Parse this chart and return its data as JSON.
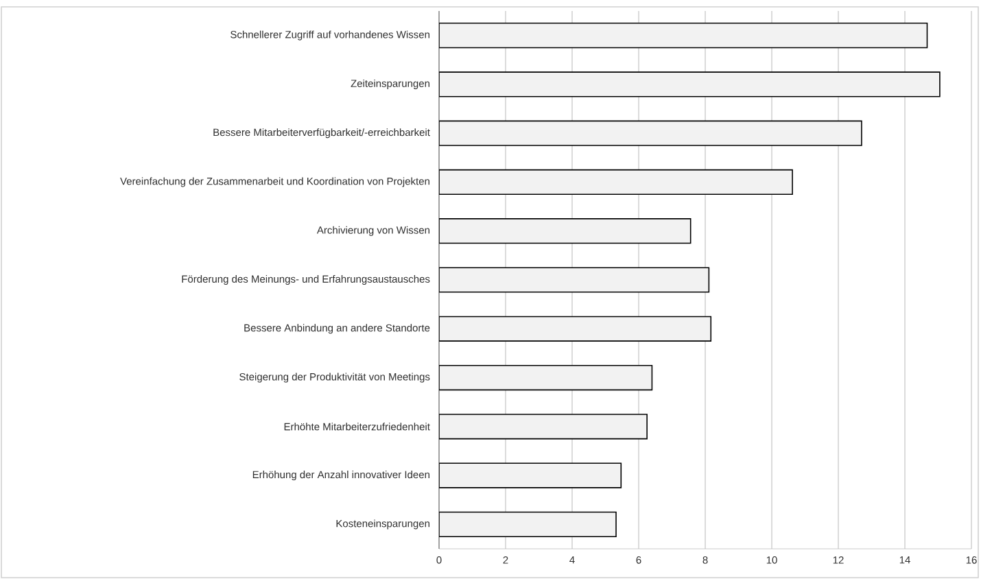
{
  "chart_data": {
    "type": "bar",
    "orientation": "horizontal",
    "categories": [
      "Schnellerer Zugriff auf vorhandenes Wissen",
      "Zeiteinsparungen",
      "Bessere Mitarbeiterverfügbarkeit/-erreichbarkeit",
      "Vereinfachung der Zusammenarbeit und Koordination von Projekten",
      "Archivierung von Wissen",
      "Förderung des Meinungs- und Erfahrungsaustausches",
      "Bessere Anbindung an andere Standorte",
      "Steigerung der Produktivität von Meetings",
      "Erhöhte Mitarbeiterzufriedenheit",
      "Erhöhung der Anzahl innovativer Ideen",
      "Kosteneinsparungen"
    ],
    "values": [
      14.67,
      15.05,
      12.7,
      10.62,
      7.56,
      8.11,
      8.17,
      6.4,
      6.25,
      5.47,
      5.32
    ],
    "color": "#f2f2f2",
    "xlim": [
      0,
      16
    ],
    "xticks": [
      0,
      2,
      4,
      6,
      8,
      10,
      12,
      14,
      16
    ],
    "grid": "x"
  }
}
